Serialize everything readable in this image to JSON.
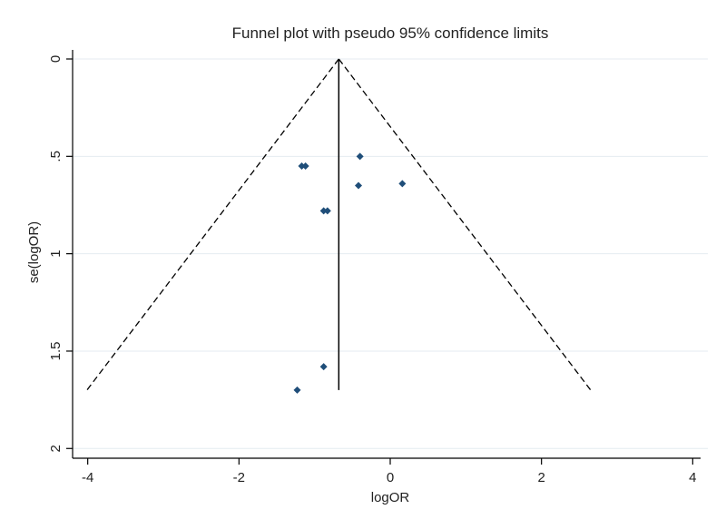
{
  "chart_data": {
    "type": "scatter",
    "title": "Funnel plot with pseudo 95% confidence limits",
    "xlabel": "logOR",
    "ylabel": "se(logOR)",
    "xlim": [
      -4.2,
      4.2
    ],
    "ylim": [
      0,
      2.05
    ],
    "y_reversed": true,
    "x_ticks": [
      -4,
      -2,
      0,
      2,
      4
    ],
    "x_tick_labels": [
      "-4",
      "-2",
      "0",
      "2",
      "4"
    ],
    "y_ticks": [
      0,
      0.5,
      1,
      1.5,
      2
    ],
    "y_tick_labels": [
      "0",
      ".5",
      "1",
      "1.5",
      "2"
    ],
    "grid": "horizontal",
    "legend": "none",
    "pooled_estimate": -0.68,
    "funnel_se_max": 1.7,
    "reference_line": {
      "x": -0.68,
      "y_from": 0,
      "y_to": 1.7,
      "style": "solid"
    },
    "confidence_limits": {
      "style": "dashed",
      "left": [
        {
          "x": -0.68,
          "y": 0
        },
        {
          "x": -4.01,
          "y": 1.7
        }
      ],
      "right": [
        {
          "x": -0.68,
          "y": 0
        },
        {
          "x": 2.65,
          "y": 1.7
        }
      ]
    },
    "points": [
      {
        "x": -1.17,
        "y": 0.55
      },
      {
        "x": -1.12,
        "y": 0.55
      },
      {
        "x": -0.4,
        "y": 0.5
      },
      {
        "x": -0.42,
        "y": 0.65
      },
      {
        "x": 0.16,
        "y": 0.64
      },
      {
        "x": -0.88,
        "y": 0.78
      },
      {
        "x": -0.83,
        "y": 0.78
      },
      {
        "x": -0.88,
        "y": 1.58
      },
      {
        "x": -1.23,
        "y": 1.7
      }
    ],
    "colors": {
      "marker": "#1f4e79",
      "plot_background": "#ffffff",
      "grid": "#e4ebf0",
      "axis": "#000000",
      "reference_line": "#000000",
      "limits": "#000000"
    }
  }
}
